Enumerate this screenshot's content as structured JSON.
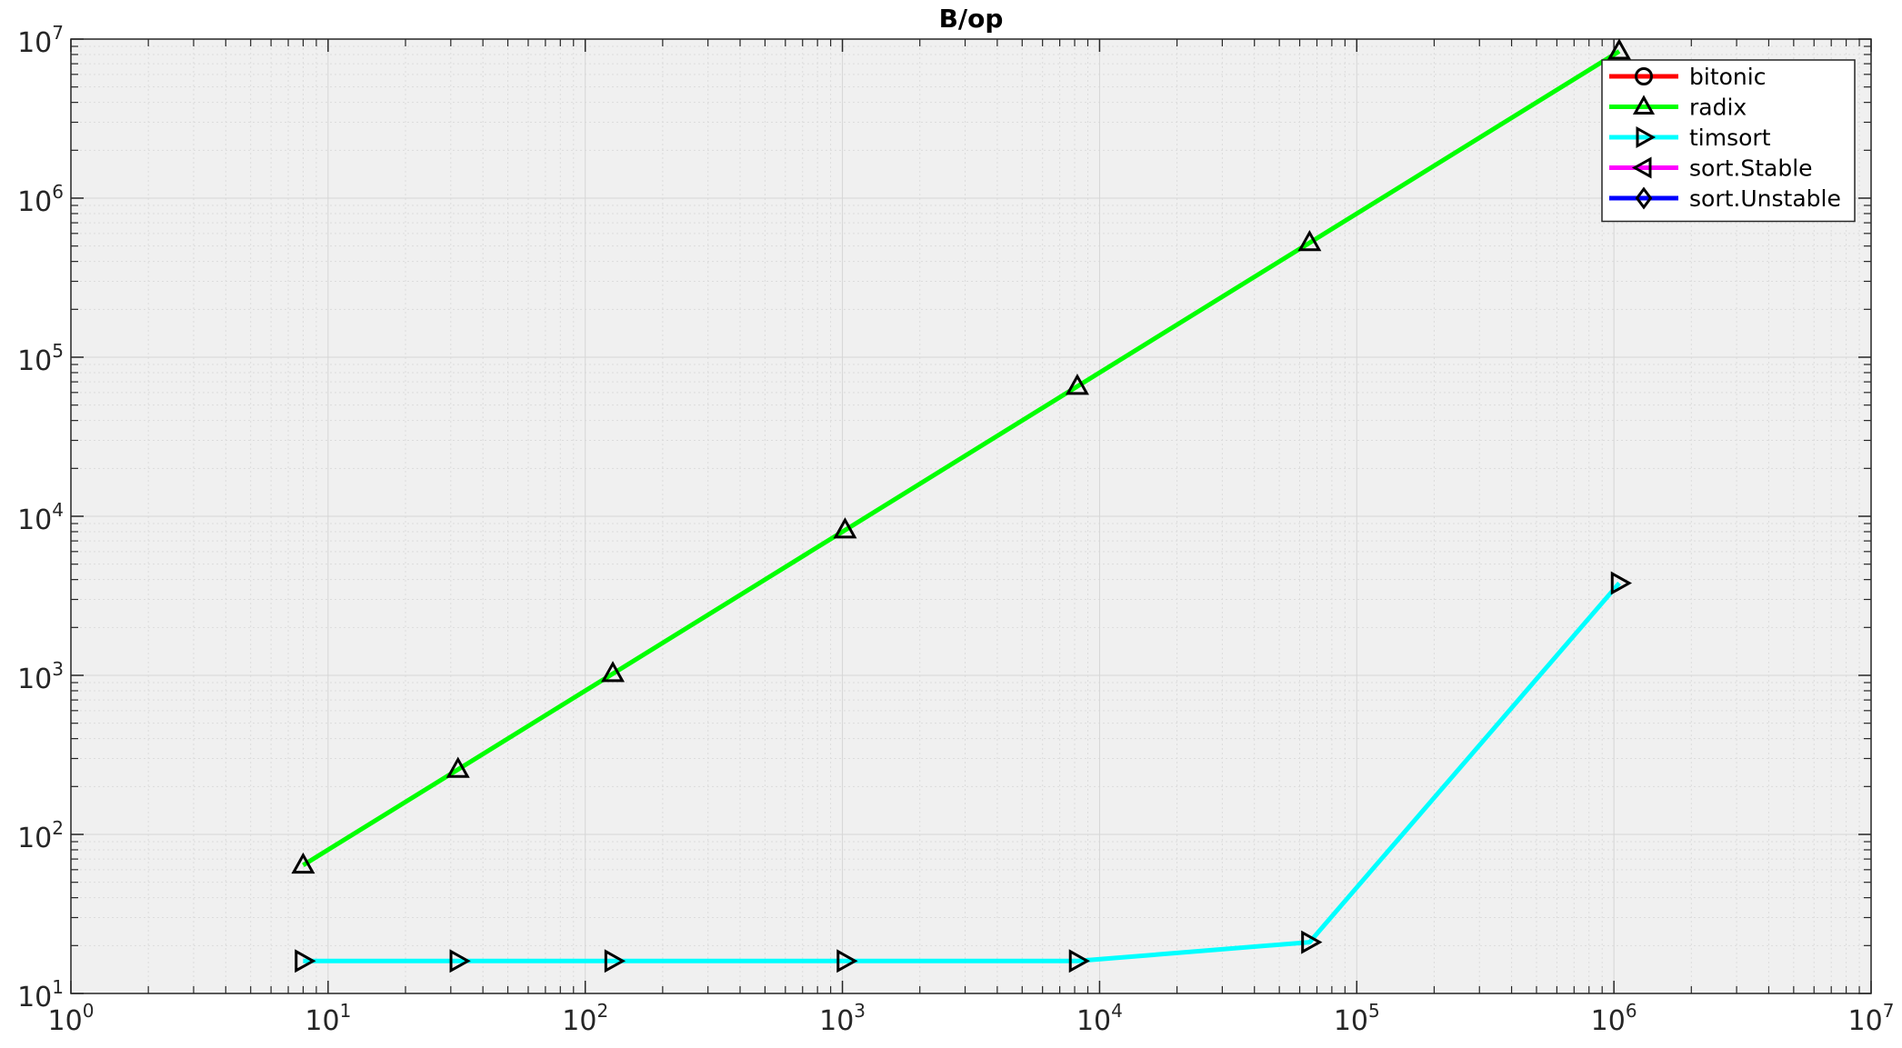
{
  "chart_data": {
    "type": "line",
    "title": "B/op",
    "xscale": "log",
    "yscale": "log",
    "xlim": [
      1,
      10000000
    ],
    "ylim": [
      10,
      10000000
    ],
    "grid": true,
    "minor_grid": true,
    "legend_position": "top-right",
    "x_tick_labels": [
      {
        "base": "10",
        "exp": "0"
      },
      {
        "base": "10",
        "exp": "1"
      },
      {
        "base": "10",
        "exp": "2"
      },
      {
        "base": "10",
        "exp": "3"
      },
      {
        "base": "10",
        "exp": "4"
      },
      {
        "base": "10",
        "exp": "5"
      },
      {
        "base": "10",
        "exp": "6"
      },
      {
        "base": "10",
        "exp": "7"
      }
    ],
    "y_tick_labels": [
      {
        "base": "10",
        "exp": "1"
      },
      {
        "base": "10",
        "exp": "2"
      },
      {
        "base": "10",
        "exp": "3"
      },
      {
        "base": "10",
        "exp": "4"
      },
      {
        "base": "10",
        "exp": "5"
      },
      {
        "base": "10",
        "exp": "6"
      },
      {
        "base": "10",
        "exp": "7"
      }
    ],
    "series": [
      {
        "name": "bitonic",
        "color": "#ff0000",
        "marker": "circle",
        "x": [],
        "y": []
      },
      {
        "name": "radix",
        "color": "#00ff00",
        "marker": "triangle-up",
        "x": [
          8,
          32,
          128,
          1024,
          8192,
          65536,
          1048576
        ],
        "y": [
          64,
          256,
          1024,
          8192,
          65536,
          524288,
          8388608
        ]
      },
      {
        "name": "timsort",
        "color": "#00ffff",
        "marker": "triangle-right",
        "x": [
          8,
          32,
          128,
          1024,
          8192,
          65536,
          1048576
        ],
        "y": [
          16,
          16,
          16,
          16,
          16,
          21,
          3800
        ]
      },
      {
        "name": "sort.Stable",
        "color": "#ff00ff",
        "marker": "triangle-left",
        "x": [],
        "y": []
      },
      {
        "name": "sort.Unstable",
        "color": "#0000ff",
        "marker": "diamond",
        "x": [],
        "y": []
      }
    ]
  }
}
